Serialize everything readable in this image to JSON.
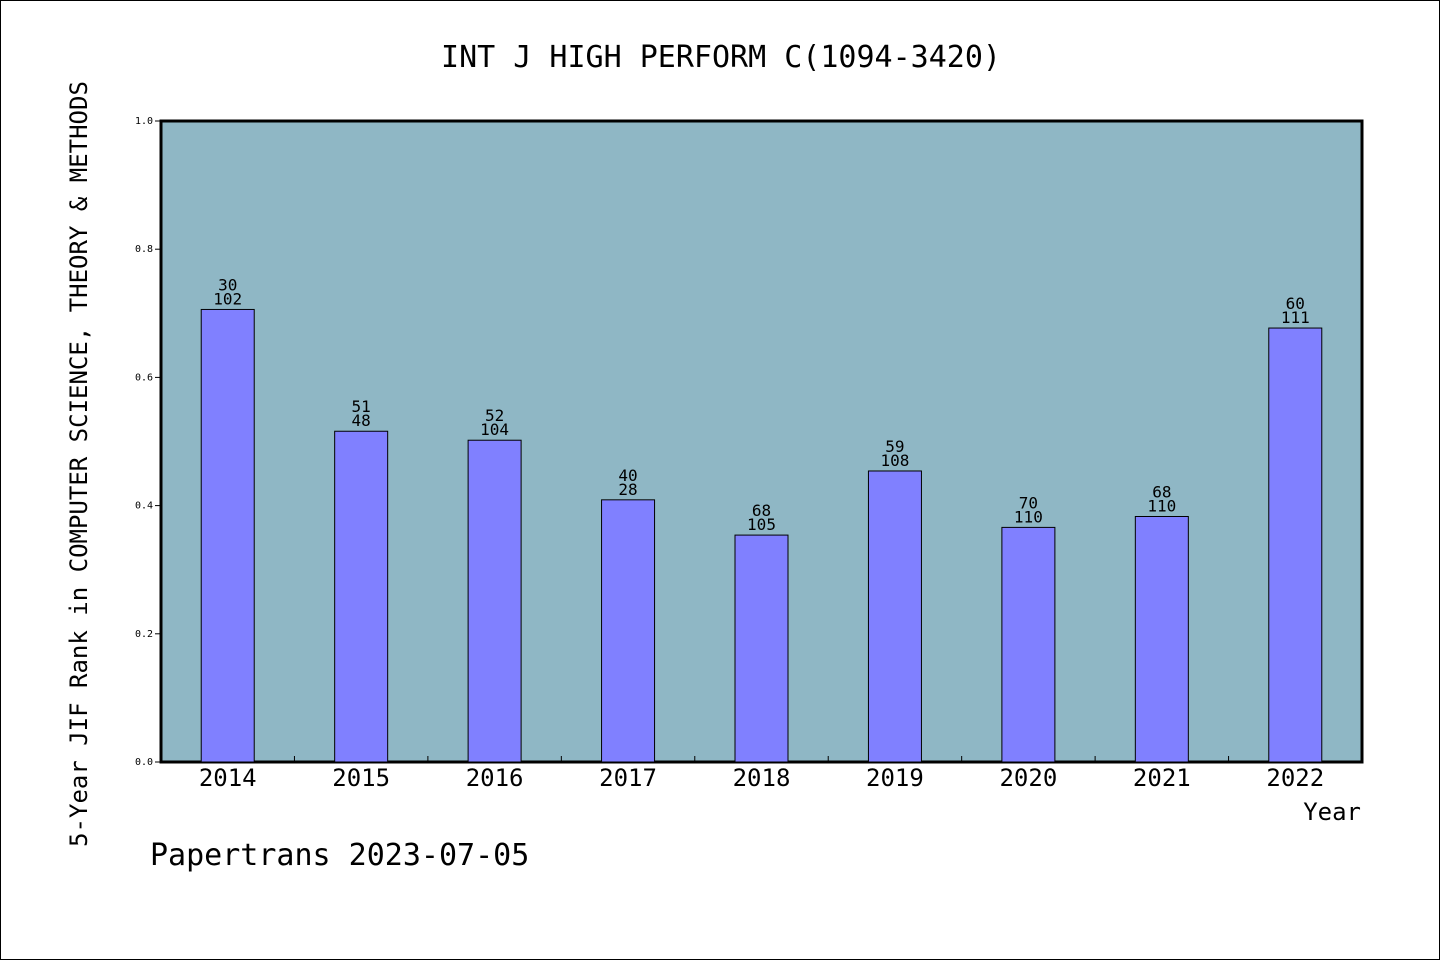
{
  "chart_data": {
    "type": "bar",
    "title": "INT J HIGH PERFORM C(1094-3420)",
    "xlabel": "Year",
    "ylabel": "5-Year JIF Rank in COMPUTER SCIENCE, THEORY & METHODS",
    "ylim": [
      0,
      1.0
    ],
    "yticks": [
      "0.0",
      "0.2",
      "0.4",
      "0.6",
      "0.8",
      "1.0"
    ],
    "categories": [
      "2014",
      "2015",
      "2016",
      "2017",
      "2018",
      "2019",
      "2020",
      "2021",
      "2022"
    ],
    "values": [
      0.706,
      0.516,
      0.502,
      0.409,
      0.354,
      0.454,
      0.366,
      0.383,
      0.677
    ],
    "labels_top": [
      "30",
      "51",
      "52",
      "40",
      "68",
      "59",
      "70",
      "68",
      "60"
    ],
    "labels_bottom": [
      "102",
      "48",
      "104",
      "28",
      "105",
      "108",
      "110",
      "110",
      "111"
    ],
    "grid": false,
    "colors": {
      "plot_background": "#8fb7c5",
      "bar": "#8080ff",
      "bar_edge": "#000000"
    }
  },
  "footer": "Papertrans 2023-07-05"
}
